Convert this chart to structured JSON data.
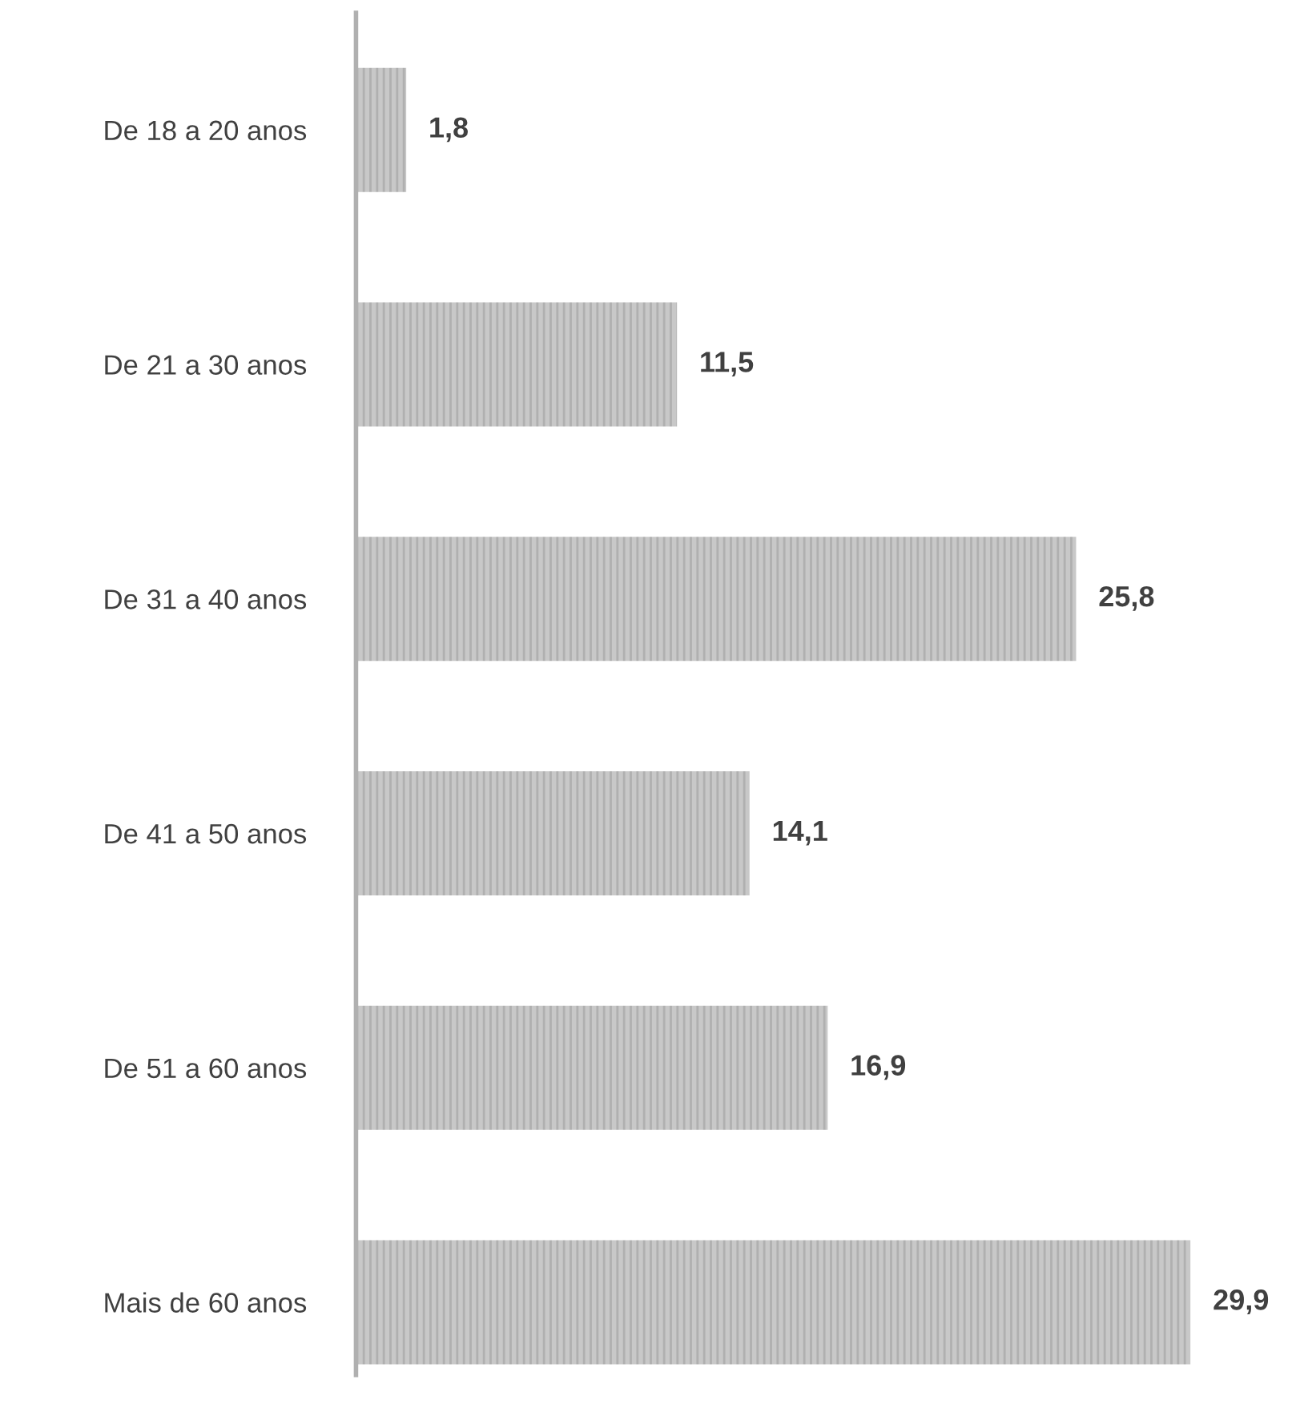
{
  "chart_data": {
    "type": "bar",
    "orientation": "horizontal",
    "categories": [
      "De 18 a 20 anos",
      "De 21 a 30 anos",
      "De 31 a 40 anos",
      "De 41 a 50 anos",
      "De 51 a 60 anos",
      "Mais de 60 anos"
    ],
    "values": [
      1.8,
      11.5,
      25.8,
      14.1,
      16.9,
      29.9
    ],
    "value_labels": [
      "1,8",
      "11,5",
      "25,8",
      "14,1",
      "16,9",
      "29,9"
    ],
    "color": "#c8c8c8",
    "grid": false,
    "legend": false
  }
}
